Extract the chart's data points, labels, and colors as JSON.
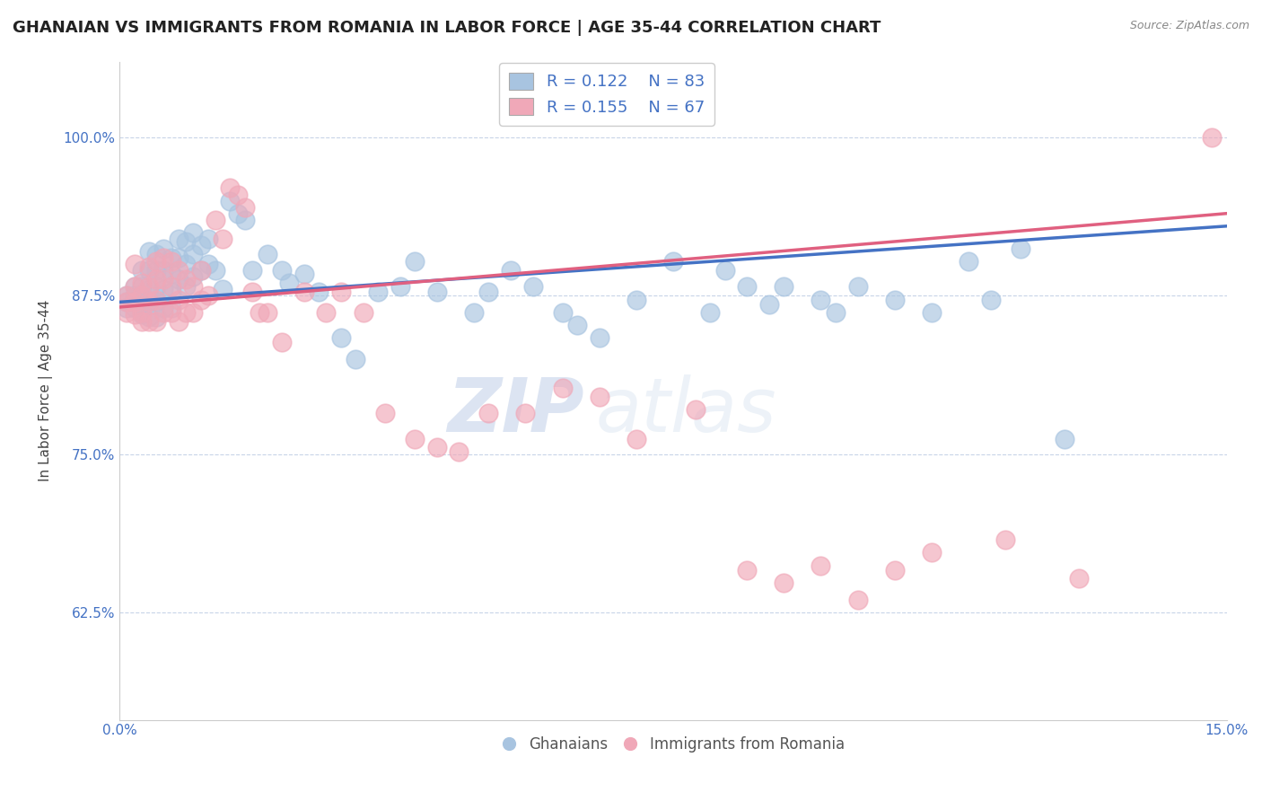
{
  "title": "GHANAIAN VS IMMIGRANTS FROM ROMANIA IN LABOR FORCE | AGE 35-44 CORRELATION CHART",
  "source": "Source: ZipAtlas.com",
  "ylabel": "In Labor Force | Age 35-44",
  "xlim": [
    0.0,
    0.15
  ],
  "ylim": [
    0.54,
    1.06
  ],
  "xticks": [
    0.0,
    0.025,
    0.05,
    0.075,
    0.1,
    0.125,
    0.15
  ],
  "xticklabels": [
    "0.0%",
    "",
    "",
    "",
    "",
    "",
    "15.0%"
  ],
  "yticks": [
    0.625,
    0.75,
    0.875,
    1.0
  ],
  "yticklabels": [
    "62.5%",
    "75.0%",
    "87.5%",
    "100.0%"
  ],
  "blue_color": "#a8c4e0",
  "pink_color": "#f0a8b8",
  "blue_line_color": "#4472c4",
  "pink_line_color": "#e06080",
  "legend_R_blue": "0.122",
  "legend_N_blue": "83",
  "legend_R_pink": "0.155",
  "legend_N_pink": "67",
  "legend_text_color": "#4472c4",
  "watermark_zip": "ZIP",
  "watermark_atlas": "atlas",
  "title_fontsize": 13,
  "axis_label_fontsize": 11,
  "tick_fontsize": 11,
  "blue_scatter": {
    "x": [
      0.001,
      0.001,
      0.001,
      0.002,
      0.002,
      0.002,
      0.002,
      0.003,
      0.003,
      0.003,
      0.003,
      0.003,
      0.004,
      0.004,
      0.004,
      0.004,
      0.004,
      0.005,
      0.005,
      0.005,
      0.005,
      0.005,
      0.006,
      0.006,
      0.006,
      0.006,
      0.007,
      0.007,
      0.007,
      0.007,
      0.008,
      0.008,
      0.008,
      0.009,
      0.009,
      0.009,
      0.01,
      0.01,
      0.01,
      0.011,
      0.011,
      0.012,
      0.012,
      0.013,
      0.014,
      0.015,
      0.016,
      0.017,
      0.018,
      0.02,
      0.022,
      0.023,
      0.025,
      0.027,
      0.03,
      0.032,
      0.035,
      0.038,
      0.04,
      0.043,
      0.048,
      0.05,
      0.053,
      0.056,
      0.06,
      0.062,
      0.065,
      0.07,
      0.075,
      0.08,
      0.082,
      0.085,
      0.088,
      0.09,
      0.095,
      0.097,
      0.1,
      0.105,
      0.11,
      0.115,
      0.118,
      0.122,
      0.128
    ],
    "y": [
      0.875,
      0.87,
      0.865,
      0.882,
      0.875,
      0.87,
      0.865,
      0.895,
      0.882,
      0.875,
      0.868,
      0.86,
      0.91,
      0.895,
      0.88,
      0.87,
      0.858,
      0.908,
      0.895,
      0.882,
      0.87,
      0.858,
      0.912,
      0.895,
      0.88,
      0.865,
      0.905,
      0.892,
      0.878,
      0.865,
      0.92,
      0.905,
      0.888,
      0.918,
      0.9,
      0.882,
      0.925,
      0.908,
      0.89,
      0.915,
      0.895,
      0.92,
      0.9,
      0.895,
      0.88,
      0.95,
      0.94,
      0.935,
      0.895,
      0.908,
      0.895,
      0.885,
      0.892,
      0.878,
      0.842,
      0.825,
      0.878,
      0.882,
      0.902,
      0.878,
      0.862,
      0.878,
      0.895,
      0.882,
      0.862,
      0.852,
      0.842,
      0.872,
      0.902,
      0.862,
      0.895,
      0.882,
      0.868,
      0.882,
      0.872,
      0.862,
      0.882,
      0.872,
      0.862,
      0.902,
      0.872,
      0.912,
      0.762
    ]
  },
  "pink_scatter": {
    "x": [
      0.001,
      0.001,
      0.001,
      0.002,
      0.002,
      0.002,
      0.002,
      0.003,
      0.003,
      0.003,
      0.003,
      0.004,
      0.004,
      0.004,
      0.004,
      0.005,
      0.005,
      0.005,
      0.005,
      0.006,
      0.006,
      0.006,
      0.007,
      0.007,
      0.007,
      0.008,
      0.008,
      0.008,
      0.009,
      0.009,
      0.01,
      0.01,
      0.011,
      0.011,
      0.012,
      0.013,
      0.014,
      0.015,
      0.016,
      0.017,
      0.018,
      0.019,
      0.02,
      0.022,
      0.025,
      0.028,
      0.03,
      0.033,
      0.036,
      0.04,
      0.043,
      0.046,
      0.05,
      0.055,
      0.06,
      0.065,
      0.07,
      0.078,
      0.085,
      0.09,
      0.095,
      0.1,
      0.105,
      0.11,
      0.12,
      0.13,
      0.148
    ],
    "y": [
      0.875,
      0.87,
      0.862,
      0.9,
      0.882,
      0.87,
      0.86,
      0.885,
      0.875,
      0.862,
      0.855,
      0.898,
      0.882,
      0.87,
      0.855,
      0.902,
      0.888,
      0.872,
      0.855,
      0.905,
      0.888,
      0.862,
      0.902,
      0.882,
      0.862,
      0.895,
      0.872,
      0.855,
      0.888,
      0.862,
      0.882,
      0.862,
      0.895,
      0.872,
      0.875,
      0.935,
      0.92,
      0.96,
      0.955,
      0.945,
      0.878,
      0.862,
      0.862,
      0.838,
      0.878,
      0.862,
      0.878,
      0.862,
      0.782,
      0.762,
      0.755,
      0.752,
      0.782,
      0.782,
      0.802,
      0.795,
      0.762,
      0.785,
      0.658,
      0.648,
      0.662,
      0.635,
      0.658,
      0.672,
      0.682,
      0.652,
      1.0
    ]
  }
}
